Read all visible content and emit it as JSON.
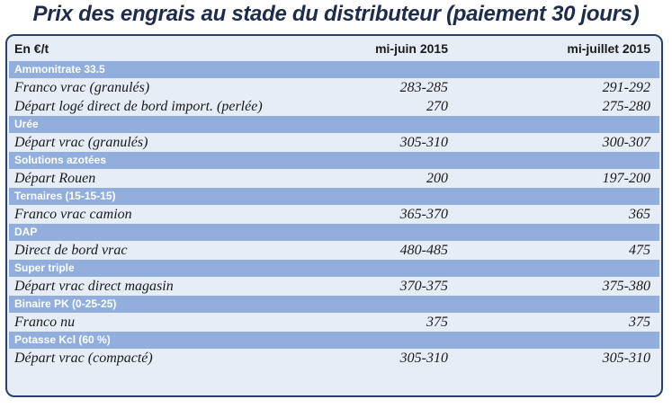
{
  "title": "Prix des engrais au stade du distributeur (paiement 30 jours)",
  "table": {
    "header": {
      "label": "En €/t",
      "col1": "mi-juin 2015",
      "col2": "mi-juillet 2015"
    },
    "sections": [
      {
        "name": "Ammonitrate 33.5",
        "rows": [
          {
            "label": "Franco vrac (granulés)",
            "v1": "283-285",
            "v2": "291-292"
          },
          {
            "label": "Départ logé direct de bord import. (perlée)",
            "v1": "270",
            "v2": "275-280"
          }
        ]
      },
      {
        "name": "Urée",
        "rows": [
          {
            "label": "Départ vrac (granulés)",
            "v1": "305-310",
            "v2": "300-307"
          }
        ]
      },
      {
        "name": "Solutions azotées",
        "rows": [
          {
            "label": "Départ Rouen",
            "v1": "200",
            "v2": "197-200"
          }
        ]
      },
      {
        "name": "Ternaires (15-15-15)",
        "rows": [
          {
            "label": "Franco vrac camion",
            "v1": "365-370",
            "v2": "365"
          }
        ]
      },
      {
        "name": "DAP",
        "rows": [
          {
            "label": "Direct de bord vrac",
            "v1": "480-485",
            "v2": "475"
          }
        ]
      },
      {
        "name": "Super triple",
        "rows": [
          {
            "label": "Départ vrac direct magasin",
            "v1": "370-375",
            "v2": "375-380"
          }
        ]
      },
      {
        "name": "Binaire PK (0-25-25)",
        "rows": [
          {
            "label": "Franco nu",
            "v1": "375",
            "v2": "375"
          }
        ]
      },
      {
        "name": "Potasse Kcl (60 %)",
        "rows": [
          {
            "label": "Départ vrac (compacté)",
            "v1": "305-310",
            "v2": "305-310"
          }
        ]
      }
    ]
  }
}
